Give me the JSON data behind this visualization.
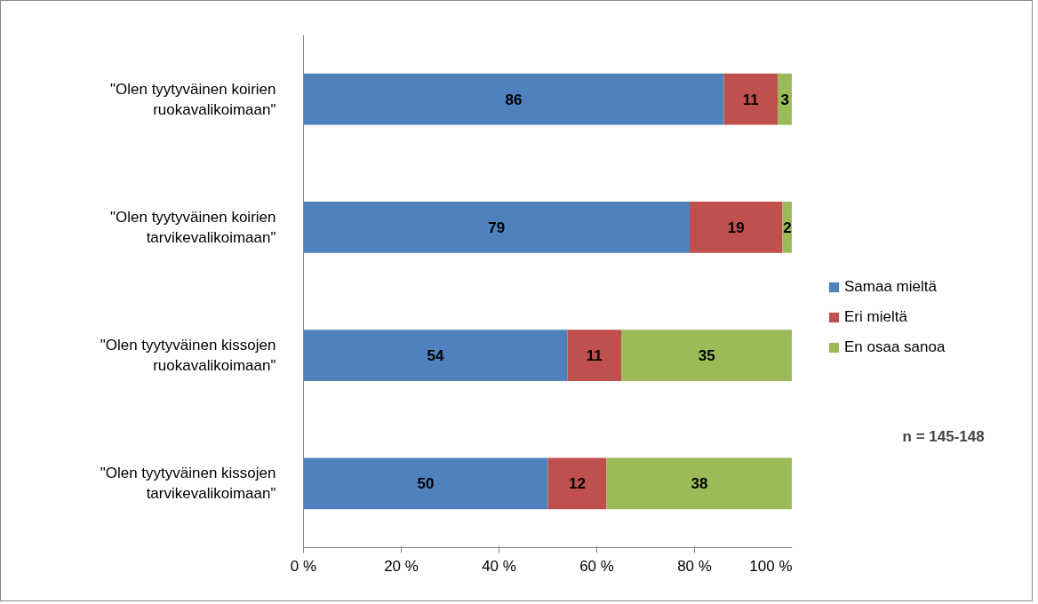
{
  "chart_data": {
    "type": "bar",
    "orientation": "horizontal",
    "stacked": true,
    "categories": [
      "\"Olen tyytyväinen koirien ruokavalikoimaan\"",
      "\"Olen tyytyväinen koirien tarvikevalikoimaan\"",
      "\"Olen tyytyväinen kissojen ruokavalikoimaan\"",
      "\"Olen tyytyväinen kissojen tarvikevalikoimaan\""
    ],
    "series": [
      {
        "name": "Samaa mieltä",
        "color": "#4f81bd",
        "values": [
          86,
          79,
          54,
          50
        ]
      },
      {
        "name": "Eri mieltä",
        "color": "#c0504d",
        "values": [
          11,
          19,
          11,
          12
        ]
      },
      {
        "name": "En osaa sanoa",
        "color": "#9bbb59",
        "values": [
          3,
          2,
          35,
          38
        ]
      }
    ],
    "xlim": [
      0,
      100
    ],
    "xticks": [
      {
        "value": 0,
        "label": "0 %"
      },
      {
        "value": 20,
        "label": "20 %"
      },
      {
        "value": 40,
        "label": "40 %"
      },
      {
        "value": 60,
        "label": "60 %"
      },
      {
        "value": 80,
        "label": "80 %"
      },
      {
        "value": 100,
        "label": "100 %"
      }
    ],
    "data_labels": true,
    "grid": false,
    "legend": "right",
    "annotations": [
      "n = 145-148"
    ]
  }
}
